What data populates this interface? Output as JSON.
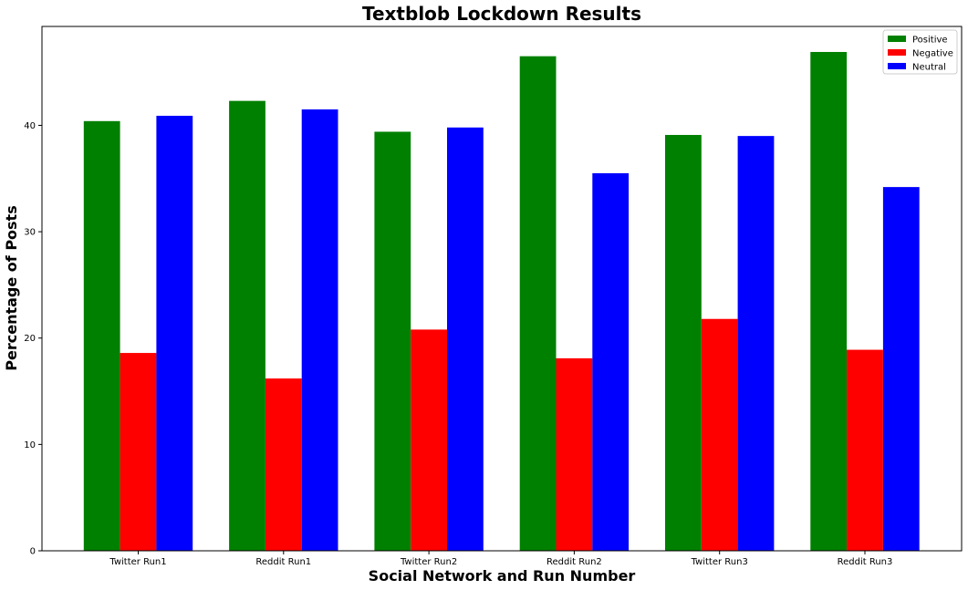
{
  "chart_data": {
    "type": "bar",
    "title": "Textblob Lockdown Results",
    "xlabel": "Social Network and Run Number",
    "ylabel": "Percentage of Posts",
    "categories": [
      "Twitter Run1",
      "Reddit Run1",
      "Twitter Run2",
      "Reddit Run2",
      "Twitter Run3",
      "Reddit Run3"
    ],
    "series": [
      {
        "name": "Positive",
        "color": "#008000",
        "values": [
          40.4,
          42.3,
          39.4,
          46.5,
          39.1,
          46.9
        ]
      },
      {
        "name": "Negative",
        "color": "#ff0000",
        "values": [
          18.6,
          16.2,
          20.8,
          18.1,
          21.8,
          18.9
        ]
      },
      {
        "name": "Neutral",
        "color": "#0000ff",
        "values": [
          40.9,
          41.5,
          39.8,
          35.5,
          39.0,
          34.2
        ]
      }
    ],
    "ylim": [
      0,
      49.3
    ],
    "yticks": [
      0,
      10,
      20,
      30,
      40
    ],
    "grid": false,
    "legend_position": "top-right"
  }
}
